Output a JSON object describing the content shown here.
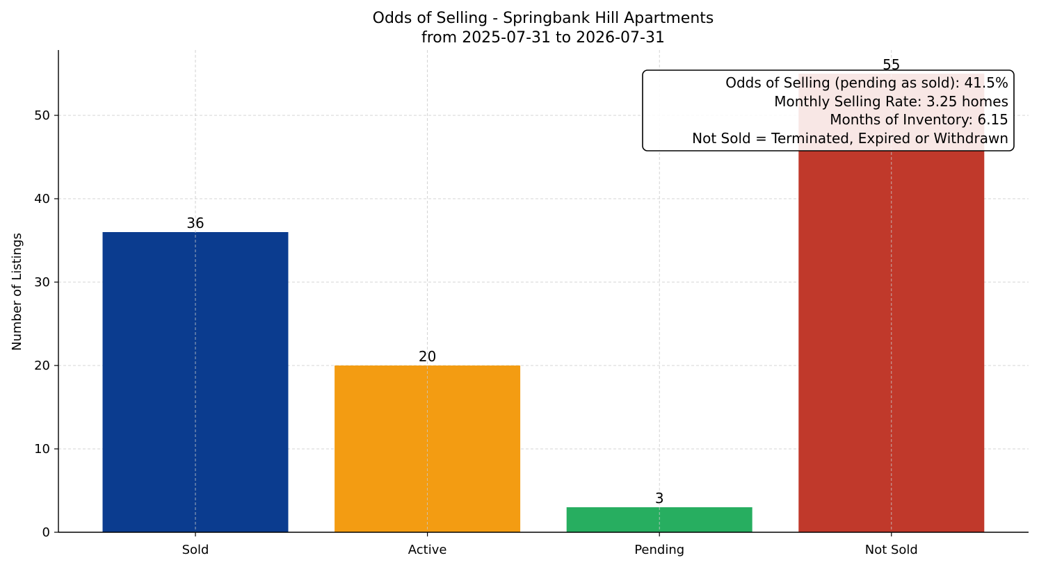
{
  "chart_data": {
    "type": "bar",
    "title": "Odds of Selling - Springbank Hill Apartments",
    "subtitle": "from 2025-07-31 to 2026-07-31",
    "xlabel": "",
    "ylabel": "Number of Listings",
    "categories": [
      "Sold",
      "Active",
      "Pending",
      "Not Sold"
    ],
    "values": [
      36,
      20,
      3,
      55
    ],
    "colors": [
      "#0b3c8f",
      "#f39c12",
      "#27ae60",
      "#c0392b"
    ],
    "ylim": [
      0,
      58
    ],
    "yticks": [
      0,
      10,
      20,
      30,
      40,
      50
    ],
    "grid": true,
    "annotation_placement": "top-right",
    "annotation_lines": [
      "Odds of Selling (pending as sold): 41.5%",
      "Monthly Selling Rate: 3.25 homes",
      "Months of Inventory: 6.15",
      "Not Sold = Terminated, Expired or Withdrawn"
    ]
  }
}
